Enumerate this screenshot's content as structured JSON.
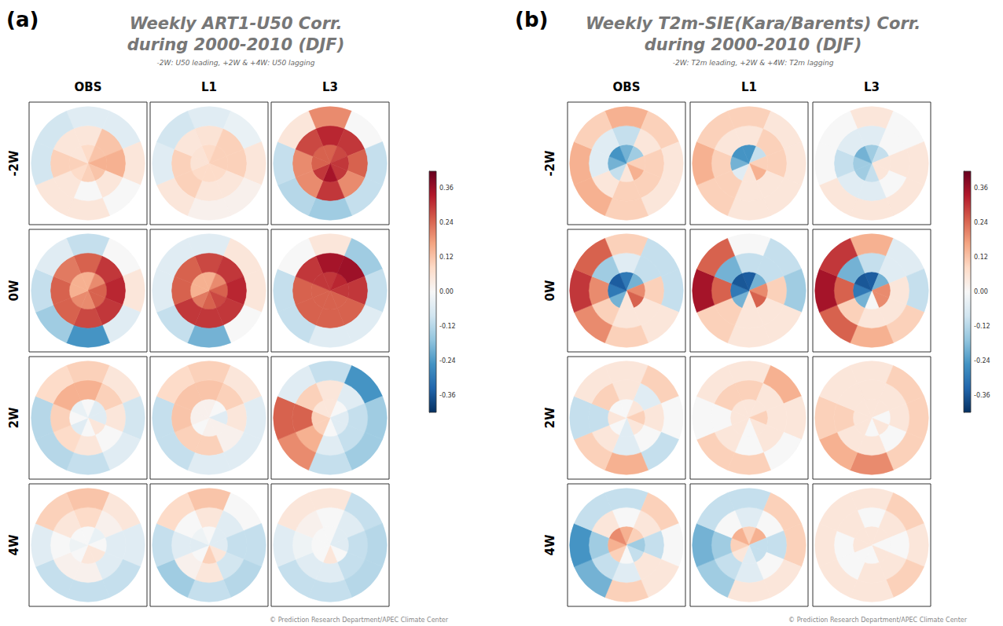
{
  "chart_data": [
    {
      "type": "polar_heatmap",
      "panel": "(a)",
      "title": [
        "Weekly ART1-U50 Corr.",
        "during 2000-2010 (DJF)"
      ],
      "subtitle": "-2W: U50 leading, +2W & +4W: U50 lagging",
      "columns": [
        "OBS",
        "L1",
        "L3"
      ],
      "rows": [
        "-2W",
        "0W",
        "2W",
        "4W"
      ],
      "maps": [
        [
          [
            [
              0.08,
              0.12,
              0.15,
              0.12,
              0.1,
              0.08,
              0.1,
              0.05
            ],
            [
              0.05,
              0.12,
              0.15,
              0.05,
              0.0,
              0.05,
              0.1,
              0.05
            ],
            [
              -0.05,
              -0.05,
              0.05,
              0.0,
              0.05,
              0.05,
              -0.08,
              -0.08
            ]
          ],
          [
            [
              0.08,
              0.1,
              0.1,
              0.08,
              0.08,
              0.08,
              0.06,
              0.06
            ],
            [
              0.06,
              0.1,
              0.1,
              0.05,
              0.05,
              0.1,
              0.1,
              0.05
            ],
            [
              -0.05,
              -0.03,
              0.05,
              0.02,
              0.02,
              0.05,
              -0.05,
              -0.08
            ]
          ],
          [
            [
              0.25,
              0.28,
              0.3,
              0.3,
              0.35,
              0.3,
              0.25,
              0.25
            ],
            [
              0.32,
              0.3,
              0.25,
              0.2,
              0.3,
              0.2,
              0.2,
              0.28
            ],
            [
              0.2,
              0.0,
              -0.1,
              -0.1,
              -0.15,
              -0.12,
              -0.1,
              0.05
            ]
          ]
        ],
        [
          [
            [
              0.15,
              0.2,
              0.25,
              0.25,
              0.2,
              0.2,
              0.15,
              0.15
            ],
            [
              0.25,
              0.3,
              0.32,
              0.3,
              0.28,
              0.25,
              0.25,
              0.22
            ],
            [
              -0.1,
              0.0,
              0.05,
              -0.05,
              -0.25,
              -0.15,
              -0.1,
              -0.05
            ]
          ],
          [
            [
              0.15,
              0.2,
              0.25,
              0.28,
              0.25,
              0.22,
              0.15,
              0.15
            ],
            [
              0.28,
              0.3,
              0.32,
              0.3,
              0.3,
              0.3,
              0.25,
              0.25
            ],
            [
              -0.05,
              0.05,
              0.05,
              0.0,
              -0.2,
              -0.1,
              -0.05,
              -0.05
            ]
          ],
          [
            [
              0.3,
              0.32,
              0.3,
              0.25,
              0.25,
              0.25,
              0.25,
              0.3
            ],
            [
              0.35,
              0.36,
              0.3,
              0.25,
              0.25,
              0.25,
              0.25,
              0.3
            ],
            [
              0.05,
              -0.15,
              -0.1,
              -0.05,
              -0.05,
              -0.1,
              -0.1,
              0.0
            ]
          ]
        ],
        [
          [
            [
              0.0,
              -0.05,
              -0.05,
              0.05,
              0.0,
              -0.05,
              0.0,
              -0.03
            ],
            [
              0.15,
              0.1,
              0.05,
              0.0,
              0.05,
              0.08,
              0.1,
              0.15
            ],
            [
              0.1,
              0.05,
              -0.08,
              -0.05,
              -0.1,
              -0.12,
              -0.12,
              0.08
            ]
          ],
          [
            [
              0.02,
              0.0,
              -0.05,
              0.02,
              0.02,
              0.0,
              0.02,
              0.02
            ],
            [
              0.12,
              0.1,
              0.05,
              0.02,
              0.1,
              0.1,
              0.12,
              0.12
            ],
            [
              0.1,
              0.05,
              -0.05,
              -0.05,
              -0.05,
              -0.1,
              -0.1,
              0.08
            ]
          ],
          [
            [
              0.05,
              0.0,
              -0.05,
              -0.05,
              0.0,
              0.1,
              0.1,
              0.05
            ],
            [
              0.05,
              -0.05,
              -0.1,
              -0.1,
              -0.05,
              0.15,
              0.25,
              0.1
            ],
            [
              -0.1,
              -0.25,
              -0.15,
              -0.15,
              -0.1,
              0.2,
              0.25,
              -0.05
            ]
          ]
        ],
        [
          [
            [
              0.0,
              -0.03,
              0.0,
              0.05,
              0.05,
              0.0,
              -0.02,
              0.0
            ],
            [
              0.08,
              0.02,
              -0.05,
              -0.05,
              0.02,
              0.02,
              0.0,
              0.05
            ],
            [
              0.12,
              0.05,
              -0.05,
              -0.1,
              -0.1,
              -0.1,
              -0.05,
              0.1
            ]
          ],
          [
            [
              0.0,
              -0.05,
              -0.05,
              0.05,
              0.1,
              0.0,
              -0.05,
              -0.02
            ],
            [
              0.05,
              -0.05,
              -0.1,
              -0.08,
              0.05,
              0.02,
              -0.05,
              0.0
            ],
            [
              0.12,
              0.0,
              -0.1,
              -0.12,
              -0.1,
              -0.15,
              -0.1,
              0.08
            ]
          ],
          [
            [
              0.0,
              -0.05,
              -0.05,
              0.0,
              0.05,
              0.0,
              0.0,
              0.0
            ],
            [
              0.0,
              -0.05,
              -0.1,
              -0.1,
              -0.05,
              -0.05,
              -0.02,
              0.02
            ],
            [
              0.05,
              -0.1,
              -0.12,
              -0.12,
              -0.1,
              -0.1,
              -0.05,
              0.05
            ]
          ]
        ]
      ],
      "colorbar": {
        "range": [
          -0.42,
          0.42
        ],
        "ticks": [
          -0.36,
          -0.24,
          -0.12,
          {
            "value": 0,
            "label": "0.00"
          },
          0.12,
          0.24,
          0.36
        ]
      },
      "credit": "© Prediction Research Department/APEC Climate Center"
    },
    {
      "type": "polar_heatmap",
      "panel": "(b)",
      "title": [
        "Weekly T2m-SIE(Kara/Barents) Corr.",
        "during 2000-2010 (DJF)"
      ],
      "subtitle": "-2W: T2m leading, +2W & +4W: T2m lagging",
      "columns": [
        "OBS",
        "L1",
        "L3"
      ],
      "rows": [
        "-2W",
        "0W",
        "2W",
        "4W"
      ],
      "maps": [
        [
          [
            [
              -0.2,
              -0.15,
              0.1,
              0.15,
              0.05,
              -0.1,
              -0.2,
              -0.25
            ],
            [
              -0.1,
              0.05,
              0.1,
              0.1,
              0.1,
              0.05,
              -0.05,
              -0.05
            ],
            [
              0.15,
              0.1,
              0.05,
              0.05,
              0.1,
              0.15,
              0.15,
              0.1
            ]
          ],
          [
            [
              -0.25,
              -0.1,
              0.1,
              0.15,
              0.05,
              -0.05,
              -0.2,
              -0.25
            ],
            [
              0.05,
              0.1,
              0.1,
              0.05,
              0.05,
              0.1,
              0.1,
              0.05
            ],
            [
              0.1,
              0.05,
              0.05,
              0.05,
              0.05,
              0.1,
              0.15,
              0.1
            ]
          ],
          [
            [
              -0.15,
              -0.1,
              0.05,
              0.05,
              -0.1,
              -0.15,
              -0.15,
              -0.2
            ],
            [
              -0.05,
              0.0,
              0.05,
              0.0,
              -0.05,
              -0.05,
              -0.1,
              -0.05
            ],
            [
              0.05,
              0.0,
              0.05,
              0.05,
              0.05,
              0.05,
              0.0,
              0.0
            ]
          ]
        ],
        [
          [
            [
              -0.3,
              -0.2,
              0.2,
              0.25,
              0.05,
              -0.2,
              -0.3,
              -0.35
            ],
            [
              -0.05,
              -0.1,
              0.1,
              0.05,
              0.05,
              0.1,
              0.2,
              -0.15
            ],
            [
              0.1,
              -0.1,
              -0.1,
              0.05,
              0.1,
              0.2,
              0.3,
              0.25
            ]
          ],
          [
            [
              -0.35,
              -0.2,
              0.2,
              0.25,
              0.05,
              -0.2,
              -0.3,
              -0.36
            ],
            [
              -0.1,
              -0.1,
              0.1,
              0.05,
              0.05,
              0.1,
              0.25,
              -0.2
            ],
            [
              0.0,
              -0.1,
              -0.15,
              0.05,
              0.05,
              0.1,
              0.35,
              0.25
            ]
          ],
          [
            [
              -0.35,
              -0.2,
              0.2,
              0.2,
              0.0,
              -0.2,
              -0.3,
              -0.36
            ],
            [
              -0.1,
              -0.05,
              0.05,
              0.05,
              0.05,
              0.1,
              0.25,
              -0.2
            ],
            [
              0.15,
              -0.05,
              -0.1,
              0.1,
              0.15,
              0.25,
              0.35,
              0.3
            ]
          ]
        ],
        [
          [
            [
              0.0,
              0.05,
              0.1,
              0.05,
              -0.05,
              0.0,
              0.05,
              0.0
            ],
            [
              0.05,
              -0.05,
              0.05,
              0.0,
              -0.05,
              0.05,
              -0.1,
              0.1
            ],
            [
              0.05,
              0.1,
              0.0,
              -0.1,
              0.15,
              0.1,
              -0.1,
              0.05
            ]
          ],
          [
            [
              0.05,
              0.05,
              0.1,
              0.05,
              0.0,
              0.05,
              0.05,
              0.05
            ],
            [
              0.1,
              0.05,
              0.05,
              0.05,
              0.0,
              0.05,
              0.0,
              0.1
            ],
            [
              0.05,
              0.15,
              0.05,
              0.0,
              0.1,
              0.1,
              0.0,
              0.05
            ]
          ],
          [
            [
              0.05,
              0.05,
              0.0,
              0.05,
              0.0,
              0.05,
              0.05,
              0.05
            ],
            [
              0.05,
              0.05,
              0.05,
              0.0,
              0.05,
              0.05,
              0.1,
              0.05
            ],
            [
              0.05,
              0.1,
              0.1,
              0.1,
              0.2,
              0.15,
              0.1,
              0.05
            ]
          ]
        ],
        [
          [
            [
              0.15,
              0.1,
              -0.15,
              -0.1,
              0.0,
              0.1,
              0.15,
              0.2
            ],
            [
              0.0,
              0.05,
              -0.1,
              0.05,
              -0.05,
              -0.1,
              -0.15,
              0.05
            ],
            [
              -0.1,
              0.1,
              0.0,
              0.05,
              0.1,
              -0.2,
              -0.25,
              -0.1
            ]
          ],
          [
            [
              0.1,
              0.15,
              -0.1,
              -0.1,
              -0.05,
              0.05,
              0.1,
              0.15
            ],
            [
              -0.05,
              0.0,
              -0.1,
              0.0,
              -0.05,
              -0.1,
              -0.15,
              0.0
            ],
            [
              -0.1,
              0.1,
              0.1,
              0.05,
              0.05,
              -0.15,
              -0.2,
              -0.1
            ]
          ],
          [
            [
              0.05,
              0.05,
              0.0,
              0.05,
              0.0,
              0.0,
              0.05,
              0.05
            ],
            [
              0.0,
              0.05,
              0.0,
              0.05,
              0.05,
              0.0,
              0.0,
              0.05
            ],
            [
              0.05,
              0.1,
              0.05,
              0.1,
              0.05,
              0.05,
              0.05,
              0.05
            ]
          ]
        ]
      ],
      "colorbar": {
        "range": [
          -0.42,
          0.42
        ],
        "ticks": [
          -0.36,
          -0.24,
          -0.12,
          {
            "value": 0,
            "label": "0.00"
          },
          0.12,
          0.24,
          0.36
        ]
      },
      "credit": "© Prediction Research Department/APEC Climate Center"
    }
  ]
}
